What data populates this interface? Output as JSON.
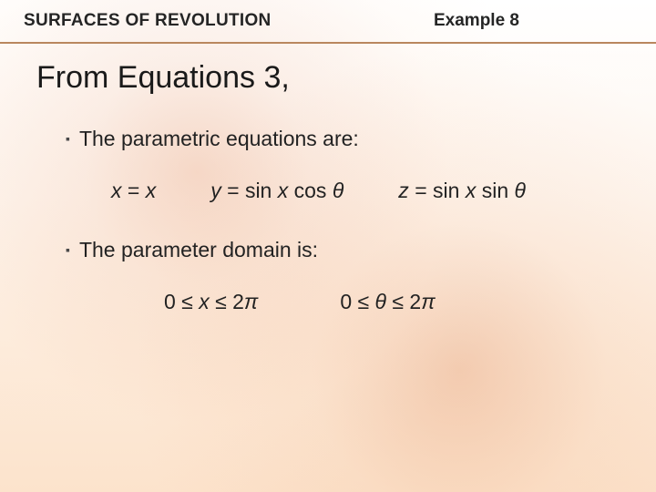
{
  "header": {
    "section_title": "SURFACES OF REVOLUTION",
    "example_label": "Example 8"
  },
  "main_heading": "From Equations 3,",
  "bullet1": "The parametric equations are:",
  "equations1": {
    "eq_x_lhs": "x",
    "eq_x_rhs": "x",
    "eq_y_lhs": "y",
    "eq_y_rhs_a": "sin ",
    "eq_y_rhs_b": "x",
    "eq_y_rhs_c": " cos ",
    "eq_y_rhs_d": "θ",
    "eq_z_lhs": "z",
    "eq_z_rhs_a": "sin ",
    "eq_z_rhs_b": "x",
    "eq_z_rhs_c": " sin ",
    "eq_z_rhs_d": "θ"
  },
  "bullet2": "The parameter domain is:",
  "domain": {
    "d1_a": "0 ≤ ",
    "d1_b": "x",
    "d1_c": " ≤ 2",
    "d1_d": "π",
    "d2_a": "0 ≤ ",
    "d2_b": "θ",
    "d2_c": " ≤ 2",
    "d2_d": "π"
  },
  "colors": {
    "header_border": "#b9875e",
    "text": "#222222",
    "bg_gradient_top": "#ffffff",
    "bg_gradient_bottom": "#fce3cc"
  }
}
